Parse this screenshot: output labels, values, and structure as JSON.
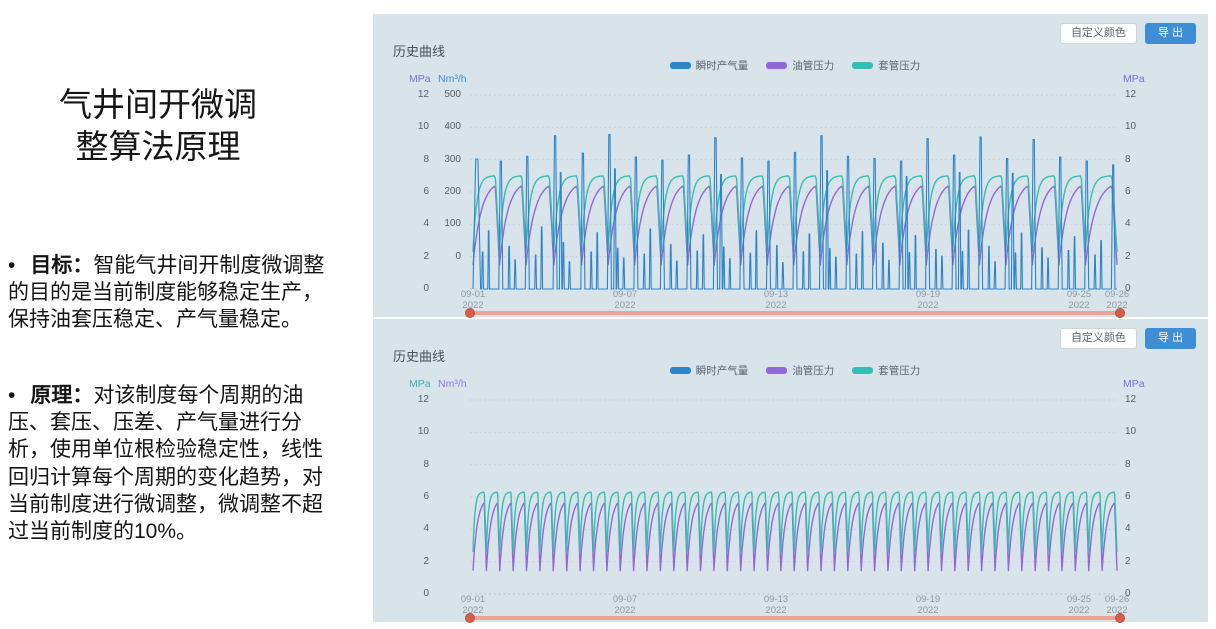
{
  "slide": {
    "bullet_char": "•",
    "title_line1": "气井间开微调",
    "title_line2": "整算法原理",
    "bullets": [
      {
        "label": "目标：",
        "text": "智能气井间开制度微调整的目的是当前制度能够稳定生产，保持油套压稳定、产气量稳定。"
      },
      {
        "label": "原理：",
        "text": "对该制度每个周期的油压、套压、压差、产气量进行分析，使用单位根检验稳定性，线性回归计算每个周期的变化趋势，对当前制度进行微调整，微调整不超过当前制度的10%。"
      }
    ]
  },
  "panels": [
    {
      "header": "历史曲线",
      "buttons": {
        "custom_color": "自定义颜色",
        "export": "导 出"
      }
    },
    {
      "header": "历史曲线",
      "buttons": {
        "custom_color": "自定义颜色",
        "export": "导 出"
      }
    }
  ],
  "colors": {
    "panel_background": "#d9e3ea",
    "export_button": "#3e8ed6",
    "slider_track": "#e9a495",
    "slider_handle": "#d4604a",
    "gas_rate_line": "#2e84c8",
    "tubing_pressure_line": "#9068d8",
    "casing_pressure_line": "#38bdb2"
  },
  "chart_data": [
    {
      "type": "line",
      "title": "历史曲线",
      "x_range_days": [
        0,
        25.5
      ],
      "x_year": "2022",
      "x_ticks": [
        {
          "t": 0,
          "label": "09-01"
        },
        {
          "t": 6,
          "label": "09-07"
        },
        {
          "t": 12,
          "label": "09-13"
        },
        {
          "t": 18,
          "label": "09-19"
        },
        {
          "t": 24,
          "label": "09-25"
        },
        {
          "t": 25.5,
          "label": "09-26"
        }
      ],
      "axes": {
        "left_pressure": {
          "unit": "MPa",
          "range": [
            0,
            12
          ],
          "ticks": [
            12,
            10,
            8,
            6,
            4,
            2,
            0
          ],
          "color": "#7b6fd6"
        },
        "left_flow": {
          "unit": "Nm³/h",
          "range": [
            0,
            500
          ],
          "ticks": [
            500,
            400,
            300,
            200,
            100,
            0
          ],
          "color": "#3b8fd2"
        },
        "right_pressure": {
          "unit": "MPa",
          "range": [
            0,
            12
          ],
          "ticks": [
            12,
            10,
            8,
            6,
            4,
            2,
            0
          ],
          "color": "#7b6fd6"
        }
      },
      "grid": "horizontal-dotted",
      "legend_position": "top-center",
      "cycle_starts": [
        0,
        1.05,
        2.1,
        3.2,
        4.3,
        5.35,
        6.4,
        7.45,
        8.5,
        9.55,
        10.6,
        11.65,
        12.7,
        13.75,
        14.8,
        15.85,
        16.9,
        17.95,
        19.0,
        20.05,
        21.1,
        22.15,
        23.2,
        24.25,
        25.5
      ],
      "series": [
        {
          "name": "瞬时产气量",
          "color": "#2e84c8",
          "axis": "left_flow",
          "kind": "spikes",
          "z": 3,
          "spikes": [
            [
              0.15,
              335,
              0.3
            ],
            [
              0.38,
              95,
              0.07
            ],
            [
              0.62,
              150,
              0.07
            ],
            [
              1.1,
              330,
              0.16
            ],
            [
              1.43,
              110,
              0.07
            ],
            [
              1.67,
              75,
              0.07
            ],
            [
              2.15,
              342,
              0.16
            ],
            [
              2.48,
              88,
              0.07
            ],
            [
              2.72,
              160,
              0.07
            ],
            [
              3.25,
              395,
              0.16
            ],
            [
              3.47,
              300,
              0.1
            ],
            [
              3.58,
              120,
              0.07
            ],
            [
              3.82,
              70,
              0.07
            ],
            [
              4.35,
              350,
              0.16
            ],
            [
              4.68,
              95,
              0.07
            ],
            [
              4.92,
              145,
              0.07
            ],
            [
              5.4,
              398,
              0.16
            ],
            [
              5.62,
              310,
              0.1
            ],
            [
              5.73,
              105,
              0.07
            ],
            [
              5.97,
              80,
              0.07
            ],
            [
              6.45,
              340,
              0.16
            ],
            [
              6.78,
              90,
              0.07
            ],
            [
              7.02,
              155,
              0.07
            ],
            [
              7.5,
              332,
              0.16
            ],
            [
              7.83,
              115,
              0.07
            ],
            [
              8.07,
              72,
              0.07
            ],
            [
              8.55,
              345,
              0.16
            ],
            [
              8.88,
              98,
              0.07
            ],
            [
              9.12,
              140,
              0.07
            ],
            [
              9.6,
              390,
              0.16
            ],
            [
              9.82,
              295,
              0.1
            ],
            [
              9.93,
              108,
              0.07
            ],
            [
              10.17,
              78,
              0.07
            ],
            [
              10.65,
              338,
              0.16
            ],
            [
              10.98,
              92,
              0.07
            ],
            [
              11.22,
              150,
              0.07
            ],
            [
              11.7,
              330,
              0.16
            ],
            [
              12.03,
              112,
              0.07
            ],
            [
              12.27,
              68,
              0.07
            ],
            [
              12.75,
              352,
              0.16
            ],
            [
              13.08,
              96,
              0.07
            ],
            [
              13.32,
              142,
              0.07
            ],
            [
              13.8,
              395,
              0.16
            ],
            [
              14.02,
              305,
              0.1
            ],
            [
              14.13,
              104,
              0.07
            ],
            [
              14.37,
              82,
              0.07
            ],
            [
              14.85,
              342,
              0.16
            ],
            [
              15.18,
              90,
              0.07
            ],
            [
              15.42,
              148,
              0.07
            ],
            [
              15.9,
              336,
              0.16
            ],
            [
              16.23,
              118,
              0.07
            ],
            [
              16.47,
              74,
              0.07
            ],
            [
              16.95,
              330,
              0.16
            ],
            [
              17.17,
              290,
              0.1
            ],
            [
              17.28,
              94,
              0.07
            ],
            [
              17.52,
              138,
              0.07
            ],
            [
              18.0,
              388,
              0.16
            ],
            [
              18.33,
              102,
              0.07
            ],
            [
              18.57,
              85,
              0.07
            ],
            [
              19.05,
              345,
              0.16
            ],
            [
              19.27,
              300,
              0.1
            ],
            [
              19.38,
              97,
              0.07
            ],
            [
              19.62,
              152,
              0.07
            ],
            [
              20.1,
              392,
              0.16
            ],
            [
              20.43,
              110,
              0.07
            ],
            [
              20.67,
              70,
              0.07
            ],
            [
              21.15,
              336,
              0.16
            ],
            [
              21.37,
              298,
              0.1
            ],
            [
              21.48,
              93,
              0.07
            ],
            [
              21.72,
              144,
              0.07
            ],
            [
              22.2,
              385,
              0.16
            ],
            [
              22.53,
              106,
              0.07
            ],
            [
              22.77,
              80,
              0.07
            ],
            [
              23.25,
              340,
              0.16
            ],
            [
              23.58,
              99,
              0.07
            ],
            [
              23.82,
              135,
              0.07
            ],
            [
              24.3,
              330,
              0.16
            ],
            [
              24.63,
              88,
              0.07
            ],
            [
              24.87,
              125,
              0.07
            ],
            [
              25.35,
              320,
              0.14
            ]
          ]
        },
        {
          "name": "油管压力",
          "color": "#9068d8",
          "axis": "left_pressure",
          "kind": "cycles",
          "z": 1,
          "min": 1.5,
          "max": 6.4,
          "k": 2.7
        },
        {
          "name": "套管压力",
          "color": "#38bdb2",
          "axis": "left_pressure",
          "kind": "cycles",
          "z": 2,
          "min": 2.3,
          "max": 7.0,
          "k": 6
        }
      ]
    },
    {
      "type": "line",
      "title": "历史曲线",
      "x_range_days": [
        0,
        25.5
      ],
      "x_year": "2022",
      "x_ticks": [
        {
          "t": 0,
          "label": "09-01"
        },
        {
          "t": 6,
          "label": "09-07"
        },
        {
          "t": 12,
          "label": "09-13"
        },
        {
          "t": 18,
          "label": "09-19"
        },
        {
          "t": 24,
          "label": "09-25"
        },
        {
          "t": 25.5,
          "label": "09-26"
        }
      ],
      "axes": {
        "left_pressure": {
          "unit": "MPa",
          "range": [
            0,
            12
          ],
          "ticks": [
            12,
            10,
            8,
            6,
            4,
            2,
            0
          ],
          "color": "#39b3ac"
        },
        "left_flow": {
          "unit": "Nm³/h",
          "range": [
            0,
            500
          ],
          "ticks": [],
          "color": "#8f7bd8"
        },
        "right_pressure": {
          "unit": "MPa",
          "range": [
            0,
            12
          ],
          "ticks": [
            12,
            10,
            8,
            6,
            4,
            2,
            0
          ],
          "color": "#7b6fd6"
        }
      },
      "grid": "horizontal-dotted",
      "legend_position": "top-center",
      "cycle_starts": [
        0,
        0.53,
        1.06,
        1.59,
        2.12,
        2.65,
        3.18,
        3.71,
        4.24,
        4.77,
        5.3,
        5.83,
        6.36,
        6.89,
        7.42,
        7.95,
        8.48,
        9.01,
        9.54,
        10.07,
        10.6,
        11.13,
        11.66,
        12.19,
        12.72,
        13.25,
        13.78,
        14.31,
        14.84,
        15.37,
        15.9,
        16.43,
        16.96,
        17.49,
        18.02,
        18.55,
        19.08,
        19.61,
        20.14,
        20.67,
        21.2,
        21.73,
        22.26,
        22.79,
        23.32,
        23.85,
        24.38,
        24.91,
        25.5
      ],
      "series": [
        {
          "name": "瞬时产气量",
          "color": "#2e84c8",
          "axis": "left_flow",
          "kind": "spikes",
          "z": 3,
          "hidden": true,
          "spikes": []
        },
        {
          "name": "油管压力",
          "color": "#9068d8",
          "axis": "left_pressure",
          "kind": "cycles",
          "z": 1,
          "min": 1.45,
          "max": 5.65,
          "k": 2.6
        },
        {
          "name": "套管压力",
          "color": "#38bdb2",
          "axis": "left_pressure",
          "kind": "cycles",
          "z": 2,
          "min": 2.6,
          "max": 6.3,
          "k": 6
        }
      ]
    }
  ]
}
